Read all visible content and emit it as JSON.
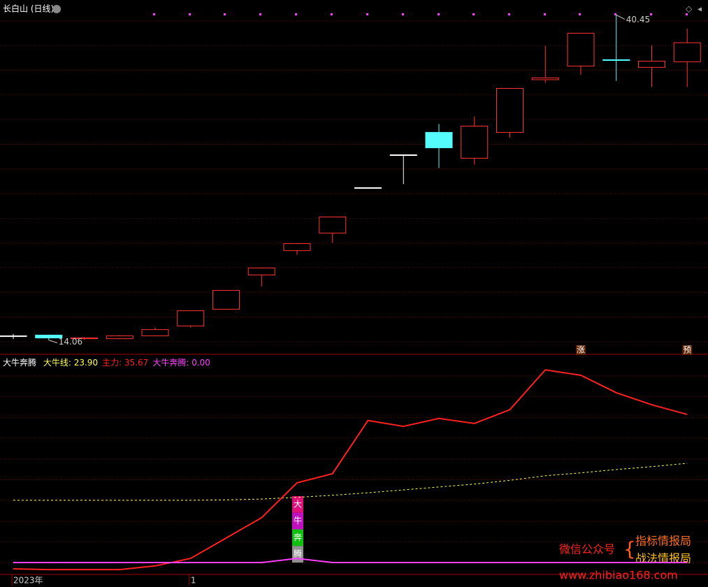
{
  "chart_data": [
    {
      "type": "candlestick",
      "title": "长白山 (日线)",
      "up_color": "#ff3232",
      "down_color": "#54fcfc",
      "flat_color": "#ffffff",
      "ylim": [
        13.3,
        41.1
      ],
      "grid": true,
      "open": [
        14.4,
        14.46,
        14.17,
        14.17,
        14.4,
        15.2,
        16.56,
        19.34,
        21.32,
        22.74,
        26.43,
        29.1,
        30.92,
        28.82,
        30.92,
        35.2,
        36.3,
        36.82,
        36.2,
        36.65
      ],
      "high": [
        14.55,
        14.5,
        14.3,
        14.46,
        15.08,
        16.44,
        18.09,
        19.96,
        21.89,
        24.05,
        26.43,
        29.1,
        31.6,
        32.2,
        34.49,
        37.95,
        38.97,
        40.45,
        38.0,
        39.35
      ],
      "low": [
        14.15,
        14.06,
        14.1,
        14.12,
        14.4,
        15.08,
        16.56,
        18.4,
        20.98,
        21.95,
        26.43,
        26.72,
        28.02,
        28.3,
        30.5,
        34.94,
        35.6,
        35.1,
        34.6,
        34.6
      ],
      "close": [
        14.4,
        14.23,
        14.23,
        14.4,
        14.91,
        16.44,
        18.09,
        19.91,
        21.89,
        24.05,
        26.43,
        29.1,
        29.67,
        31.43,
        34.49,
        35.34,
        38.97,
        36.76,
        36.7,
        38.2
      ],
      "high_marker": 40.45,
      "low_marker": 14.06,
      "signals": [
        null,
        null,
        null,
        null,
        null,
        null,
        null,
        null,
        null,
        null,
        null,
        null,
        null,
        null,
        null,
        null,
        "涨",
        null,
        null,
        "预"
      ]
    },
    {
      "type": "line",
      "title": "大牛奔腾",
      "legend_separator": ": ",
      "ylim": [
        -4.2,
        48.8
      ],
      "grid": true,
      "categories": [
        "2023年",
        null,
        null,
        null,
        null,
        "1",
        null,
        null,
        null,
        null,
        null,
        null,
        null,
        null,
        null,
        null,
        null,
        null,
        null,
        null
      ],
      "series": [
        {
          "name": "大牛线",
          "color": "#ffff54",
          "style": "dashed",
          "legend_value": "23.90",
          "values": [
            15.0,
            15.0,
            15.0,
            15.0,
            15.0,
            15.0,
            15.1,
            15.3,
            15.7,
            16.2,
            16.8,
            17.5,
            18.2,
            18.9,
            19.8,
            20.9,
            21.6,
            22.4,
            23.1,
            23.9
          ]
        },
        {
          "name": "主力",
          "color": "#ff2020",
          "style": "solid",
          "legend_value": "35.67",
          "values": [
            -1.5,
            -1.7,
            -1.7,
            -1.7,
            -0.8,
            1.0,
            5.9,
            10.8,
            19.2,
            21.4,
            34.2,
            32.8,
            34.7,
            33.5,
            36.8,
            46.4,
            45.1,
            40.9,
            38.0,
            35.67
          ]
        },
        {
          "name": "大牛奔腾",
          "color": "#ff40ff",
          "style": "solid",
          "legend_value": "0.00",
          "values": [
            0,
            0,
            0,
            0,
            0,
            0,
            0,
            0,
            1.0,
            0,
            0,
            0,
            0,
            0,
            0,
            0,
            0,
            0,
            0,
            0
          ]
        }
      ],
      "signal_chars": [
        "大",
        "牛",
        "奔",
        "腾"
      ],
      "signal_colors": [
        "#e0107a",
        "#c010c0",
        "#10c010",
        "#909090"
      ]
    }
  ],
  "watermark": {
    "left": "微信公众号",
    "right": [
      "指标情报局",
      "战法情报局"
    ],
    "url": "www.zhibiao168.com"
  }
}
